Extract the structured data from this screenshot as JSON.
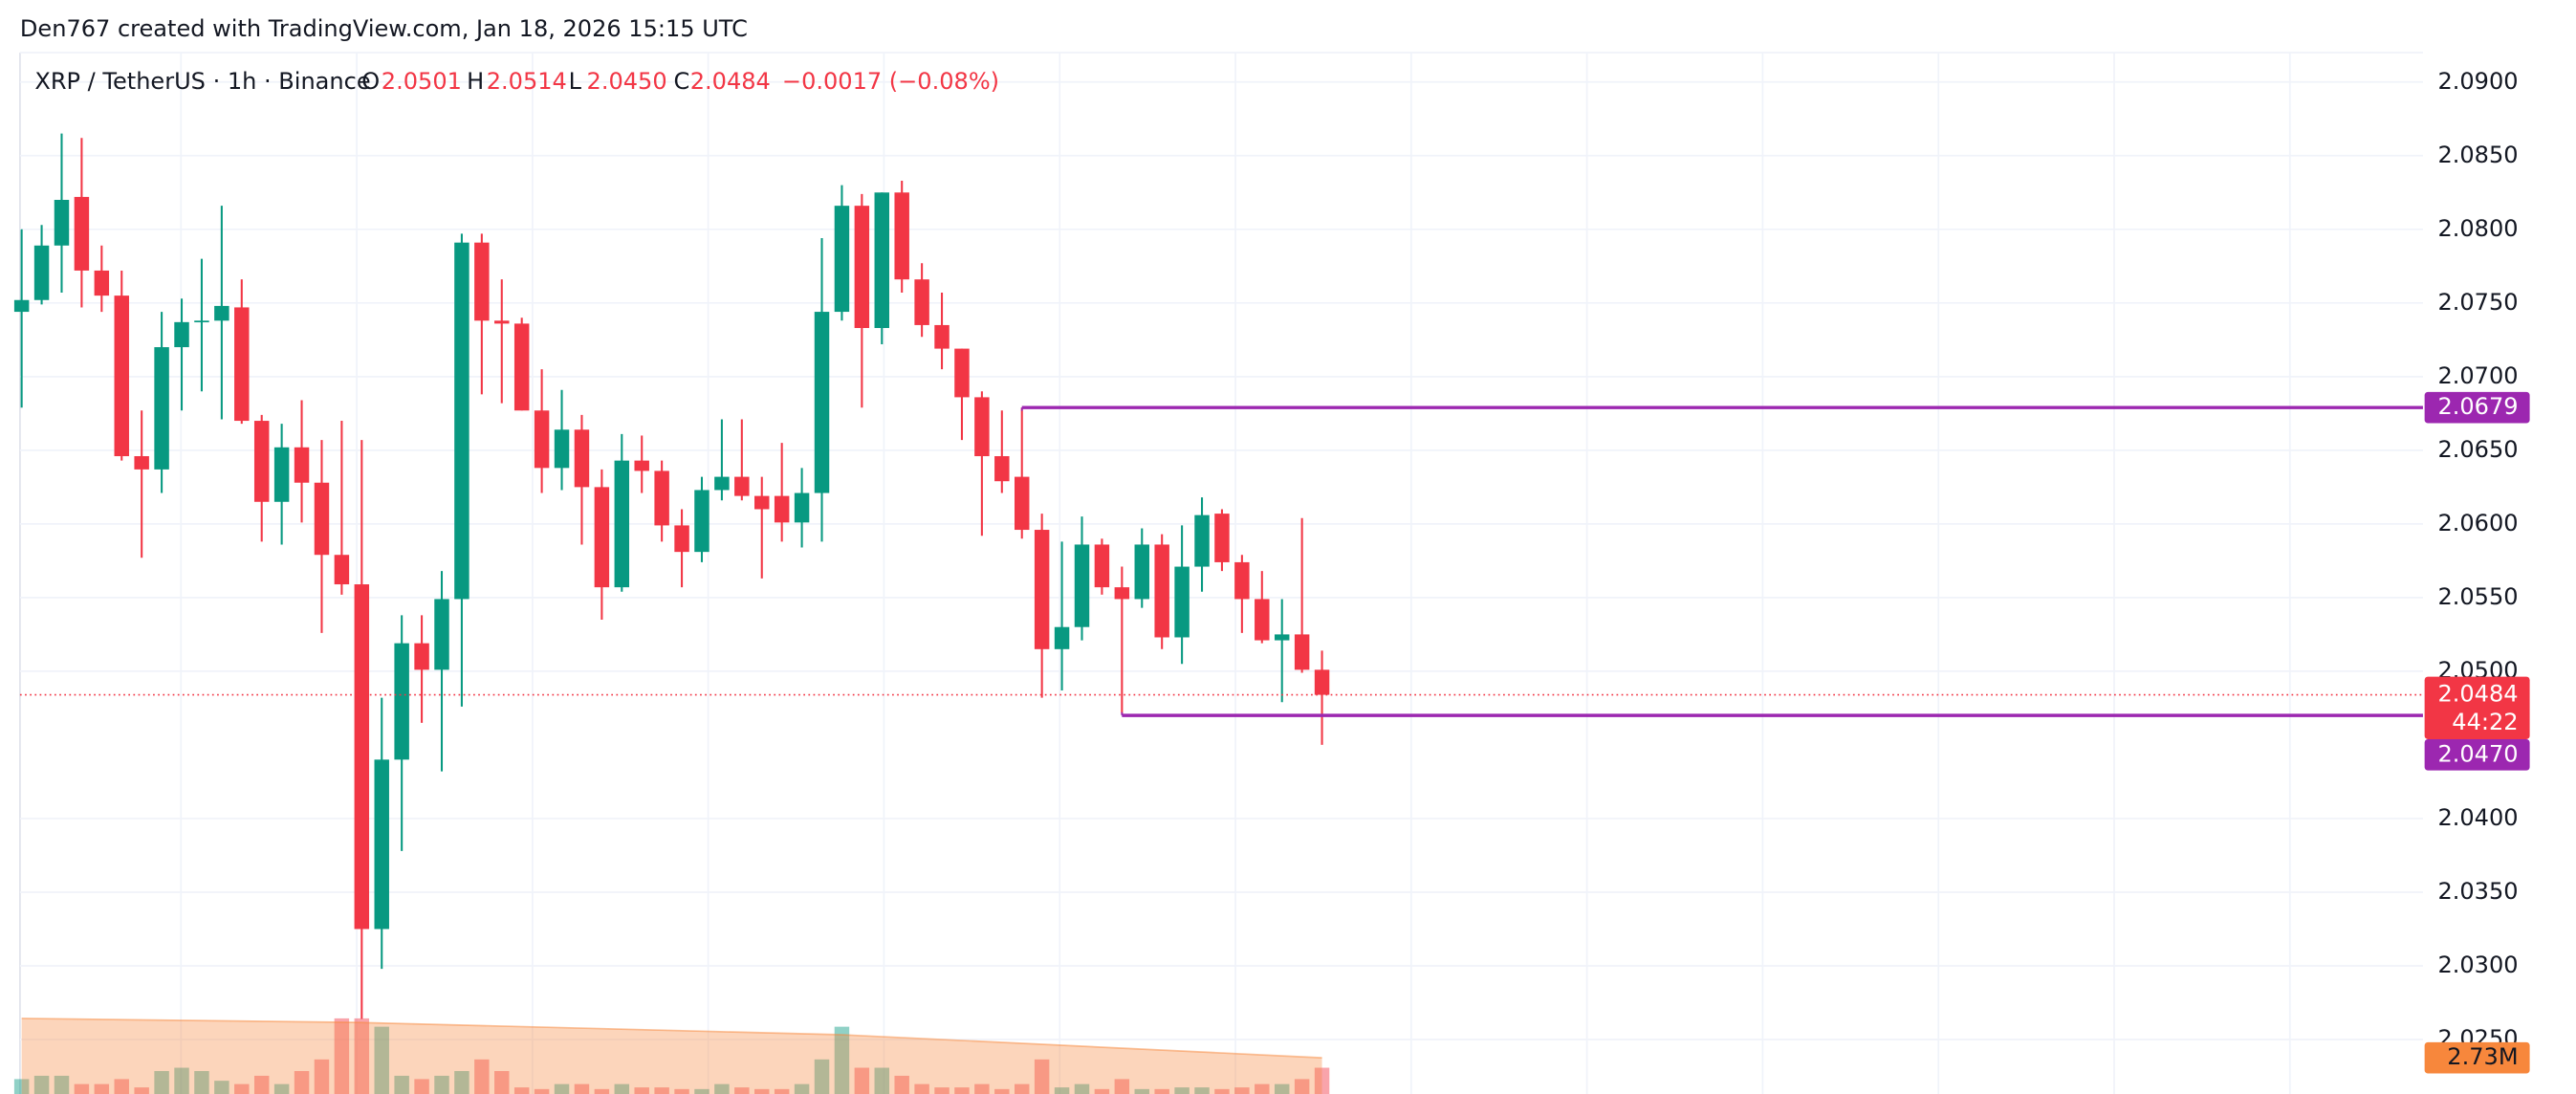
{
  "attribution": "Den767 created with TradingView.com, Jan 18, 2026 15:15 UTC",
  "chart_data": {
    "type": "candlestick",
    "legend": {
      "symbol": "XRP / TetherUS · 1h · Binance",
      "o": "O",
      "h": "H",
      "l": "L",
      "c": "C",
      "l_value": "2.0450",
      "change": "−0.0017 (−0.08%)"
    },
    "up_color": "#089981",
    "down_color": "#f23645",
    "open": [
      2.0744,
      2.0752,
      2.0789,
      2.0822,
      2.0772,
      2.0755,
      2.0646,
      2.0637,
      2.072,
      2.0737,
      2.0738,
      2.0747,
      2.067,
      2.0615,
      2.0652,
      2.0628,
      2.0579,
      2.0559,
      2.0325,
      2.044,
      2.0519,
      2.0501,
      2.0549,
      2.0791,
      2.0738,
      2.0736,
      2.0677,
      2.0638,
      2.0664,
      2.0625,
      2.0557,
      2.0643,
      2.0636,
      2.0599,
      2.0581,
      2.0623,
      2.0632,
      2.0619,
      2.0619,
      2.0601,
      2.0621,
      2.0744,
      2.0816,
      2.0733,
      2.0825,
      2.0766,
      2.0735,
      2.0719,
      2.0686,
      2.0646,
      2.0632,
      2.0596,
      2.0515,
      2.053,
      2.0586,
      2.0557,
      2.0549,
      2.0586,
      2.0523,
      2.0571,
      2.0607,
      2.0574,
      2.0549,
      2.0521,
      2.0525,
      2.0501
    ],
    "high": [
      2.08,
      2.0803,
      2.0865,
      2.0862,
      2.0789,
      2.0772,
      2.0677,
      2.0744,
      2.0753,
      2.078,
      2.0816,
      2.0766,
      2.0674,
      2.0668,
      2.0684,
      2.0657,
      2.067,
      2.0657,
      2.0482,
      2.0538,
      2.0538,
      2.0568,
      2.0797,
      2.0797,
      2.0766,
      2.074,
      2.0705,
      2.0691,
      2.0674,
      2.0637,
      2.0661,
      2.066,
      2.0643,
      2.061,
      2.0632,
      2.0671,
      2.0671,
      2.0632,
      2.0655,
      2.0638,
      2.0794,
      2.083,
      2.0824,
      2.0825,
      2.0833,
      2.0777,
      2.0757,
      2.0719,
      2.069,
      2.0677,
      2.0679,
      2.0607,
      2.0588,
      2.0605,
      2.059,
      2.0571,
      2.0597,
      2.0593,
      2.0599,
      2.0618,
      2.061,
      2.0579,
      2.0568,
      2.0549,
      2.0604,
      2.0514
    ],
    "low": [
      2.0679,
      2.0749,
      2.0757,
      2.0747,
      2.0744,
      2.0643,
      2.0577,
      2.0621,
      2.0677,
      2.069,
      2.0671,
      2.0668,
      2.0588,
      2.0586,
      2.0601,
      2.0526,
      2.0552,
      2.0264,
      2.0298,
      2.0378,
      2.0465,
      2.0432,
      2.0476,
      2.0688,
      2.0682,
      2.0677,
      2.0621,
      2.0623,
      2.0586,
      2.0535,
      2.0554,
      2.0621,
      2.0588,
      2.0557,
      2.0574,
      2.0616,
      2.0616,
      2.0563,
      2.0588,
      2.0584,
      2.0588,
      2.0738,
      2.0679,
      2.0722,
      2.0757,
      2.0727,
      2.0705,
      2.0657,
      2.0592,
      2.0621,
      2.059,
      2.0482,
      2.0487,
      2.0521,
      2.0552,
      2.0471,
      2.0543,
      2.0515,
      2.0505,
      2.0554,
      2.0568,
      2.0526,
      2.0519,
      2.0479,
      2.0499,
      2.045
    ],
    "close": [
      2.0752,
      2.0789,
      2.082,
      2.0772,
      2.0755,
      2.0646,
      2.0637,
      2.072,
      2.0737,
      2.0738,
      2.0748,
      2.067,
      2.0615,
      2.0652,
      2.0628,
      2.0579,
      2.0559,
      2.0325,
      2.044,
      2.0519,
      2.0501,
      2.0549,
      2.0791,
      2.0738,
      2.0736,
      2.0677,
      2.0638,
      2.0664,
      2.0625,
      2.0557,
      2.0643,
      2.0636,
      2.0599,
      2.0581,
      2.0623,
      2.0632,
      2.0619,
      2.061,
      2.0601,
      2.0621,
      2.0744,
      2.0816,
      2.0733,
      2.0825,
      2.0766,
      2.0735,
      2.0719,
      2.0686,
      2.0646,
      2.0629,
      2.0596,
      2.0515,
      2.053,
      2.0586,
      2.0557,
      2.0549,
      2.0586,
      2.0523,
      2.0571,
      2.0606,
      2.0574,
      2.0549,
      2.0521,
      2.0525,
      2.0501,
      2.0484
    ],
    "volume": [
      1960000,
      2080000,
      2080000,
      1780000,
      1780000,
      1960000,
      1660000,
      2250000,
      2370000,
      2250000,
      1900000,
      1780000,
      2080000,
      1780000,
      2250000,
      2670000,
      4150000,
      4150000,
      3850000,
      2080000,
      1960000,
      2080000,
      2250000,
      2670000,
      2250000,
      1660000,
      1600000,
      1780000,
      1780000,
      1600000,
      1780000,
      1660000,
      1660000,
      1600000,
      1600000,
      1780000,
      1660000,
      1600000,
      1600000,
      1780000,
      2670000,
      3850000,
      2370000,
      2370000,
      2080000,
      1780000,
      1660000,
      1660000,
      1780000,
      1600000,
      1780000,
      2670000,
      1660000,
      1780000,
      1600000,
      1960000,
      1600000,
      1600000,
      1660000,
      1660000,
      1600000,
      1660000,
      1780000,
      1780000,
      1960000,
      2370000
    ],
    "volume_ma": {
      "x": [
        0,
        17,
        41,
        65
      ],
      "values": [
        4150000,
        4000000,
        3560000,
        2730000
      ],
      "label": "2.73M",
      "color": "#f7873c"
    },
    "vlim": [
      0,
      8000000
    ],
    "ylim": [
      2.0213,
      2.092
    ],
    "yticks": [
      {
        "value": 2.09,
        "label": "2.0900"
      },
      {
        "value": 2.085,
        "label": "2.0850"
      },
      {
        "value": 2.08,
        "label": "2.0800"
      },
      {
        "value": 2.075,
        "label": "2.0750"
      },
      {
        "value": 2.07,
        "label": "2.0700"
      },
      {
        "value": 2.065,
        "label": "2.0650"
      },
      {
        "value": 2.06,
        "label": "2.0600"
      },
      {
        "value": 2.055,
        "label": "2.0550"
      },
      {
        "value": 2.05,
        "label": "2.0500"
      },
      {
        "value": 2.04,
        "label": "2.0400"
      },
      {
        "value": 2.035,
        "label": "2.0350"
      },
      {
        "value": 2.03,
        "label": "2.0300"
      },
      {
        "value": 2.025,
        "label": "2.0250"
      }
    ],
    "grid": true,
    "levels": [
      {
        "value": 2.0679,
        "label": "2.0679",
        "start_index": 50,
        "color": "#9c27b0"
      },
      {
        "value": 2.047,
        "label": "2.0470",
        "start_index": 55,
        "color": "#9c27b0"
      }
    ],
    "countdown": "44:22"
  }
}
